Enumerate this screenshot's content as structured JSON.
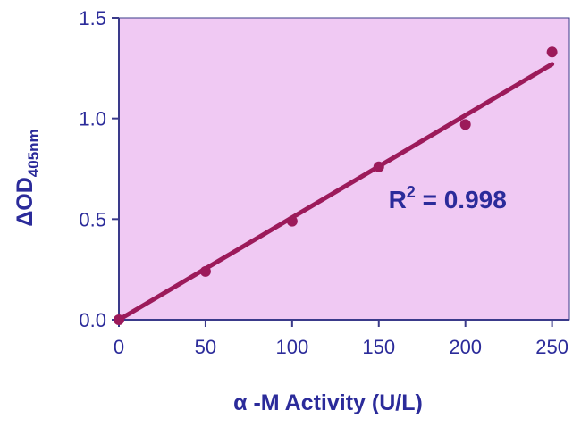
{
  "chart_data": {
    "type": "scatter",
    "xlabel": "α -M Activity (U/L)",
    "ylabel": {
      "main": "ΔOD",
      "subscript": "405nm"
    },
    "xlim": [
      0,
      260
    ],
    "ylim": [
      0,
      1.5
    ],
    "x_ticks": [
      0,
      50,
      100,
      150,
      200,
      250
    ],
    "x_tick_labels": [
      "0",
      "50",
      "100",
      "150",
      "200",
      "250"
    ],
    "y_ticks": [
      0,
      0.5,
      1.0,
      1.5
    ],
    "y_tick_labels": [
      "0.0",
      "0.5",
      "1.0",
      "1.5"
    ],
    "grid": false,
    "series": [
      {
        "points": [
          {
            "x": 0,
            "y": 0.0
          },
          {
            "x": 50,
            "y": 0.24
          },
          {
            "x": 100,
            "y": 0.49
          },
          {
            "x": 150,
            "y": 0.76
          },
          {
            "x": 200,
            "y": 0.97
          },
          {
            "x": 250,
            "y": 1.33
          }
        ]
      }
    ],
    "fit_line": {
      "x": [
        0,
        250
      ],
      "y": [
        0.0,
        1.27
      ]
    },
    "annotation": {
      "base": "R",
      "superscript": "2",
      "text": " = 0.998",
      "x": 200,
      "y": 0.6
    },
    "colors": {
      "plot_background": "#f0c9f3",
      "marker": "#9c1a5a",
      "line": "#9c1a5a",
      "text": "#2b2b9a",
      "axis": "#3a3a8a"
    }
  }
}
